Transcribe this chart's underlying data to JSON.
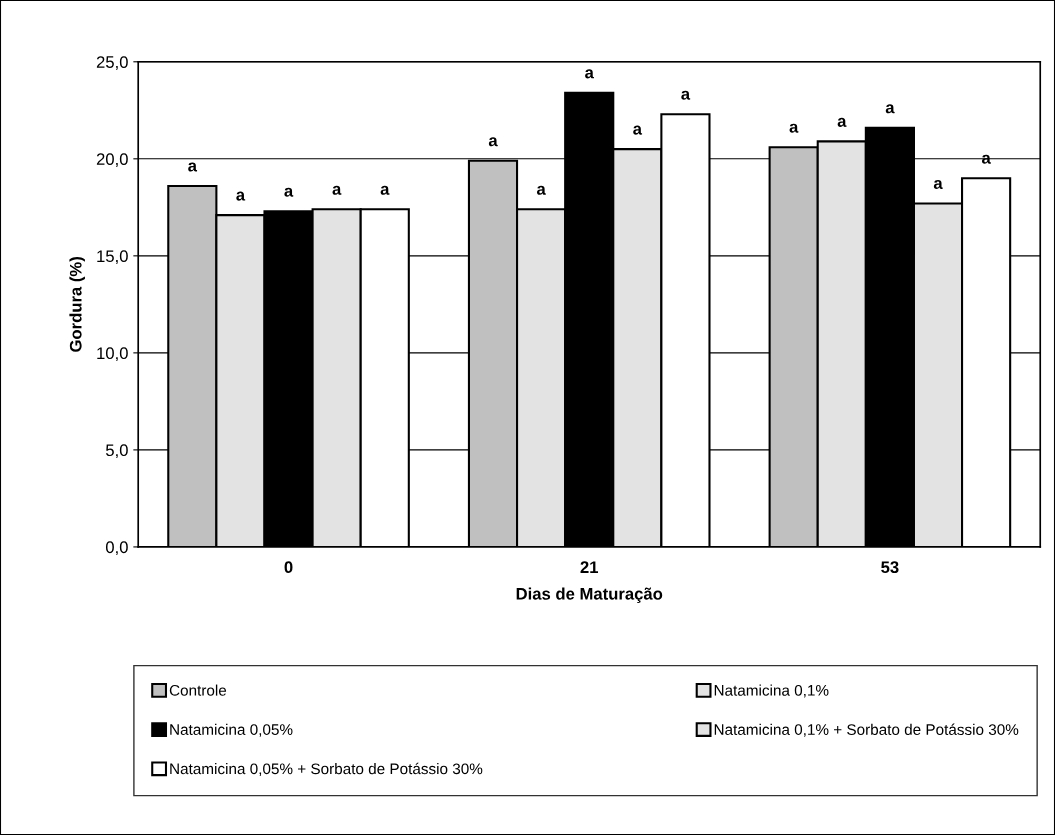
{
  "chart_data": {
    "type": "bar",
    "xlabel": "Dias de Maturação",
    "ylabel": "Gordura (%)",
    "categories": [
      "0",
      "21",
      "53"
    ],
    "series": [
      {
        "name": "Controle",
        "color": "#c0c0c0",
        "values": [
          18.6,
          19.9,
          20.6
        ],
        "value_labels": [
          "a",
          "a",
          "a"
        ]
      },
      {
        "name": "Natamicina 0,1%",
        "color": "#e3e3e3",
        "values": [
          17.1,
          17.4,
          20.9
        ],
        "value_labels": [
          "a",
          "a",
          "a"
        ]
      },
      {
        "name": "Natamicina 0,05%",
        "color": "#000000",
        "values": [
          17.3,
          23.4,
          21.6
        ],
        "value_labels": [
          "a",
          "a",
          "a"
        ]
      },
      {
        "name": "Natamicina 0,1% + Sorbato de Potássio 30%",
        "color": "#e3e3e3",
        "values": [
          17.4,
          20.5,
          17.7
        ],
        "value_labels": [
          "a",
          "a",
          "a"
        ]
      },
      {
        "name": "Natamicina 0,05% + Sorbato de Potássio 30%",
        "color": "#ffffff",
        "values": [
          17.4,
          22.3,
          19.0
        ],
        "value_labels": [
          "a",
          "a",
          "a"
        ]
      }
    ],
    "ylim": [
      0,
      25
    ],
    "yticks": [
      {
        "value": 0,
        "label": "0,0"
      },
      {
        "value": 5,
        "label": "5,0"
      },
      {
        "value": 10,
        "label": "10,0"
      },
      {
        "value": 15,
        "label": "15,0"
      },
      {
        "value": 20,
        "label": "20,0"
      },
      {
        "value": 25,
        "label": "25,0"
      }
    ],
    "grid": "y",
    "legend": "bottom"
  }
}
